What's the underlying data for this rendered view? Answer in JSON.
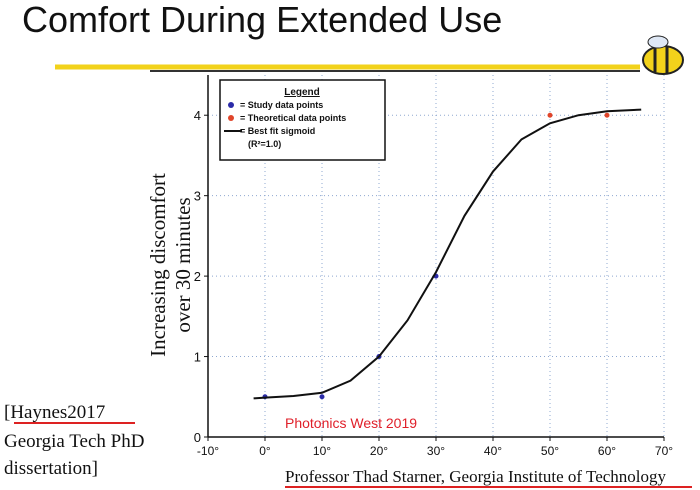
{
  "slide": {
    "title": "Comfort During Extended Use",
    "citation": [
      "[Haynes2017",
      "Georgia Tech PhD",
      "dissertation]"
    ],
    "event": "Photonics West 2019",
    "footer": "Professor Thad Starner, Georgia Institute of Technology"
  },
  "chart_data": {
    "type": "scatter",
    "ylabel": [
      "Increasing discomfort",
      "over 30 minutes"
    ],
    "xlim": [
      -10,
      70
    ],
    "ylim": [
      0,
      4.5
    ],
    "xticks": [
      {
        "value": -10,
        "label": "-10°"
      },
      {
        "value": 0,
        "label": "0°"
      },
      {
        "value": 10,
        "label": "10°"
      },
      {
        "value": 20,
        "label": "20°"
      },
      {
        "value": 30,
        "label": "30°"
      },
      {
        "value": 40,
        "label": "40°"
      },
      {
        "value": 50,
        "label": "50°"
      },
      {
        "value": 60,
        "label": "60°"
      },
      {
        "value": 70,
        "label": "70°"
      }
    ],
    "yticks": [
      0,
      1,
      2,
      3,
      4
    ],
    "grid": true,
    "legend_title": "Legend",
    "legend_note": "(R²=1.0)",
    "series": [
      {
        "name": "= Study data points",
        "type": "scatter",
        "color": "#2b2ba8",
        "x": [
          0,
          10,
          20,
          30
        ],
        "values": [
          0.5,
          0.5,
          1,
          2
        ]
      },
      {
        "name": "= Theoretical data points",
        "type": "scatter",
        "color": "#e0452a",
        "x": [
          50,
          60
        ],
        "values": [
          4,
          4
        ]
      },
      {
        "name": "= Best fit sigmoid",
        "type": "line",
        "color": "#111111",
        "x": [
          -2,
          0,
          5,
          10,
          15,
          20,
          25,
          30,
          35,
          40,
          45,
          50,
          55,
          60,
          66
        ],
        "values": [
          0.48,
          0.49,
          0.51,
          0.55,
          0.7,
          1.0,
          1.45,
          2.05,
          2.75,
          3.3,
          3.7,
          3.9,
          4.0,
          4.05,
          4.07
        ]
      }
    ]
  }
}
